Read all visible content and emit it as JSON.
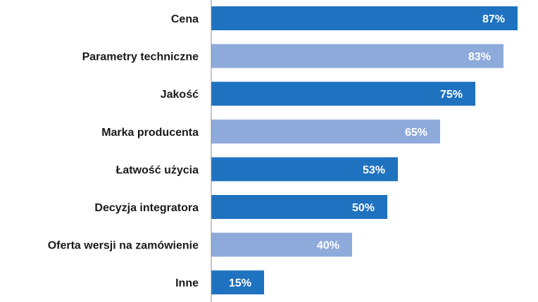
{
  "chart_data": {
    "type": "bar",
    "orientation": "horizontal",
    "title": "",
    "xlabel": "",
    "ylabel": "",
    "xlim": [
      0,
      100
    ],
    "value_suffix": "%",
    "grid": false,
    "legend": "none",
    "categories": [
      "Cena",
      "Parametry techniczne",
      "Jakość",
      "Marka producenta",
      "Łatwość użycia",
      "Decyzja integratora",
      "Oferta wersji na zamówienie",
      "Inne"
    ],
    "values": [
      87,
      83,
      75,
      65,
      53,
      50,
      40,
      15
    ],
    "value_labels": [
      "87%",
      "83%",
      "75%",
      "65%",
      "53%",
      "50%",
      "40%",
      "15%"
    ],
    "bar_styles": [
      "dark",
      "light",
      "dark",
      "light",
      "dark",
      "dark",
      "light",
      "dark"
    ],
    "colors": {
      "dark": "#1f72bf",
      "light": "#8eaadb",
      "axis": "#8c8c8c",
      "text": "#1a1a1a"
    }
  }
}
